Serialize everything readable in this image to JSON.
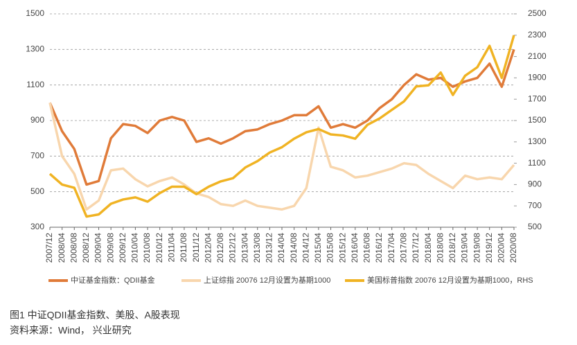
{
  "chart_data": {
    "type": "line",
    "categories": [
      "2007/12",
      "2008/04",
      "2008/08",
      "2008/12",
      "2009/04",
      "2009/08",
      "2009/12",
      "2010/04",
      "2010/08",
      "2010/12",
      "2011/04",
      "2011/08",
      "2011/12",
      "2012/04",
      "2012/08",
      "2012/12",
      "2013/04",
      "2013/08",
      "2013/12",
      "2014/04",
      "2014/08",
      "2014/12",
      "2015/04",
      "2015/08",
      "2015/12",
      "2016/04",
      "2016/08",
      "2016/12",
      "2017/04",
      "2017/08",
      "2017/12",
      "2018/04",
      "2018/08",
      "2018/12",
      "2019/04",
      "2019/08",
      "2019/12",
      "2020/04",
      "2020/08"
    ],
    "series": [
      {
        "name": "中证基金指数：QDII基金",
        "color": "#e07b39",
        "values": [
          1000,
          840,
          740,
          540,
          560,
          800,
          880,
          870,
          830,
          900,
          920,
          900,
          780,
          800,
          770,
          800,
          840,
          850,
          880,
          900,
          930,
          930,
          980,
          860,
          880,
          860,
          900,
          970,
          1020,
          1100,
          1160,
          1130,
          1140,
          1090,
          1120,
          1140,
          1220,
          1090,
          1300
        ]
      },
      {
        "name": "上证综指 20076 12月设置为基期1000",
        "color": "#f8d6ad",
        "values": [
          1000,
          700,
          600,
          400,
          450,
          620,
          630,
          570,
          530,
          560,
          580,
          540,
          490,
          470,
          430,
          420,
          450,
          420,
          410,
          400,
          420,
          520,
          860,
          640,
          620,
          580,
          590,
          610,
          630,
          660,
          650,
          600,
          560,
          520,
          590,
          570,
          580,
          570,
          650
        ]
      },
      {
        "name": "美国标普指数 20076 12月设置为基期1000，RHS",
        "color": "#f0b323",
        "axis": "y2",
        "values": [
          1000,
          900,
          870,
          600,
          620,
          720,
          760,
          780,
          740,
          820,
          880,
          880,
          810,
          880,
          930,
          960,
          1060,
          1120,
          1200,
          1250,
          1330,
          1390,
          1420,
          1370,
          1360,
          1330,
          1460,
          1520,
          1600,
          1680,
          1820,
          1830,
          1950,
          1740,
          1920,
          2000,
          2200,
          1900,
          2300
        ]
      }
    ],
    "ylim": [
      300,
      1500
    ],
    "yticks": [
      300,
      500,
      700,
      900,
      1100,
      1300,
      1500
    ],
    "y2lim": [
      500,
      2500
    ],
    "y2ticks": [
      500,
      700,
      900,
      1100,
      1300,
      1500,
      1700,
      1900,
      2100,
      2300,
      2500
    ],
    "grid": true,
    "legend": "bottom",
    "caption": [
      "图1 中证QDII基金指数、美股、A股表现",
      "资料来源：Wind， 兴业研究"
    ]
  }
}
